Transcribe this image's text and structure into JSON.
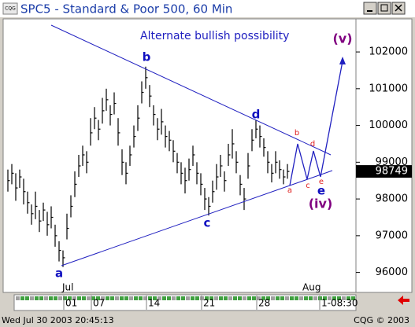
{
  "window": {
    "icon": "CQG",
    "title": "SPC5 - Standard & Poor 500, 60 Min"
  },
  "chart_data": {
    "type": "hlc",
    "annotation": "Alternate bullish possibility",
    "color": "#000000",
    "high": [
      98800,
      98950,
      98700,
      98800,
      98550,
      98200,
      97850,
      98200,
      97700,
      97900,
      97650,
      97800,
      97300,
      96850,
      96600,
      97600,
      98100,
      98750,
      99200,
      99450,
      99300,
      100200,
      100500,
      100150,
      100750,
      101000,
      100550,
      100900,
      100200,
      99350,
      99000,
      99450,
      100000,
      100550,
      101200,
      101600,
      101100,
      100550,
      100200,
      100450,
      100000,
      99850,
      99600,
      99250,
      99000,
      98850,
      99100,
      99450,
      99000,
      98700,
      98300,
      98050,
      98500,
      98950,
      99200,
      98750,
      99500,
      99900,
      99300,
      98650,
      98300,
      99250,
      99900,
      100150,
      100000,
      99650,
      99300,
      98950,
      99300,
      99050,
      98800,
      98950
    ],
    "low": [
      98200,
      98400,
      97950,
      98300,
      97850,
      97600,
      97300,
      97450,
      97100,
      97400,
      97000,
      97200,
      96700,
      96300,
      96150,
      96900,
      97500,
      98050,
      98600,
      98900,
      98700,
      99450,
      99900,
      99600,
      100050,
      100400,
      100000,
      100300,
      99450,
      98650,
      98400,
      98900,
      99400,
      99850,
      100600,
      101000,
      100500,
      100000,
      99600,
      99750,
      99400,
      99300,
      99000,
      98700,
      98400,
      98150,
      98500,
      98900,
      98400,
      98100,
      97700,
      97550,
      97900,
      98250,
      98600,
      98200,
      98900,
      99100,
      98700,
      98100,
      97700,
      98550,
      99300,
      99650,
      99400,
      99150,
      98700,
      98450,
      98700,
      98550,
      98400,
      98550
    ],
    "close": [
      98500,
      98700,
      98300,
      98600,
      98200,
      97900,
      97600,
      97800,
      97400,
      97700,
      97300,
      97500,
      97000,
      96600,
      96400,
      97200,
      97800,
      98400,
      98900,
      99200,
      99000,
      99800,
      100200,
      99900,
      100400,
      100700,
      100300,
      100600,
      99800,
      99000,
      98700,
      99200,
      99700,
      100200,
      100900,
      101300,
      100800,
      100300,
      99900,
      100100,
      99700,
      99600,
      99300,
      99000,
      98700,
      98500,
      98800,
      99200,
      98700,
      98400,
      98000,
      97800,
      98200,
      98600,
      98900,
      98500,
      99200,
      99500,
      99000,
      98400,
      98000,
      98900,
      99600,
      99900,
      99700,
      99400,
      99000,
      98700,
      99000,
      98800,
      98600,
      98749
    ],
    "ylim": [
      95500,
      102900
    ],
    "yticks": [
      96000,
      97000,
      98000,
      99000,
      100000,
      101000,
      102000
    ],
    "xlim": [
      -1,
      88
    ],
    "xticks": [
      {
        "value": 15,
        "label": "01"
      },
      {
        "value": 22,
        "label": "07"
      },
      {
        "value": 36,
        "label": "14"
      },
      {
        "value": 50,
        "label": "21"
      },
      {
        "value": 64,
        "label": "28"
      },
      {
        "value": 80,
        "label": "1-08:30"
      }
    ],
    "months": [
      {
        "value": 15,
        "label": "Jul"
      },
      {
        "value": 76,
        "label": "Aug"
      }
    ],
    "wave_labels": [
      {
        "label": "a",
        "color": "#1010c0"
      },
      {
        "label": "b",
        "color": "#1010c0"
      },
      {
        "label": "c",
        "color": "#1010c0"
      },
      {
        "label": "d",
        "color": "#1010c0"
      },
      {
        "label": "e",
        "color": "#1010c0"
      },
      {
        "label": "(iv)",
        "color": "#800080"
      },
      {
        "label": "(v)",
        "color": "#800080"
      },
      {
        "label": "a",
        "color": "#e02020"
      },
      {
        "label": "b",
        "color": "#e02020"
      },
      {
        "label": "c",
        "color": "#e02020"
      },
      {
        "label": "d",
        "color": "#e02020"
      },
      {
        "label": "e",
        "color": "#e02020"
      }
    ]
  },
  "status": {
    "datetime": "Wed Jul 30 2003 20:45:13",
    "copyright": "CQG © 2003"
  }
}
